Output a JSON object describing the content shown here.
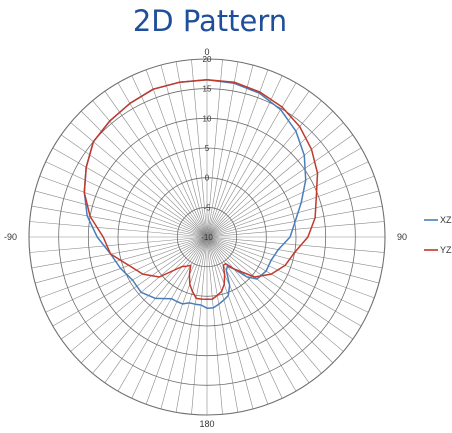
{
  "chart_data": {
    "type": "polar-line",
    "title": "2D Pattern",
    "radial_ticks": [
      -10,
      -5,
      0,
      5,
      10,
      15,
      20
    ],
    "rlim": [
      -10,
      20
    ],
    "angle_labels": [
      "0",
      "90",
      "180",
      "-90"
    ],
    "grid": true,
    "legend": "right",
    "colors": {
      "XZ": "#4a7ebb",
      "YZ": "#c0392b"
    },
    "series": [
      {
        "name": "XZ",
        "angles": [
          0,
          10,
          20,
          30,
          40,
          50,
          60,
          70,
          80,
          90,
          100,
          110,
          120,
          130,
          135,
          140,
          145,
          150,
          155,
          160,
          165,
          170,
          175,
          180,
          185,
          190,
          195,
          200,
          205,
          210,
          220,
          230,
          240,
          250,
          260,
          270,
          280,
          290,
          300,
          310,
          320,
          330,
          340,
          350
        ],
        "values": [
          16.5,
          16.3,
          15.8,
          14.8,
          13.3,
          11.4,
          9.2,
          6.9,
          5.1,
          4.0,
          2.2,
          1.5,
          1.5,
          1.0,
          -0.5,
          -3.0,
          -4.0,
          -3.5,
          -1.0,
          0.5,
          1.0,
          1.5,
          2.0,
          2.0,
          1.5,
          1.5,
          1.5,
          2.0,
          2.0,
          2.0,
          3.5,
          4.5,
          4.5,
          5.5,
          6.5,
          8.5,
          10.5,
          12.0,
          13.5,
          15.0,
          15.5,
          16.0,
          16.5,
          16.5
        ]
      },
      {
        "name": "YZ",
        "angles": [
          0,
          10,
          20,
          30,
          40,
          50,
          60,
          70,
          80,
          90,
          100,
          110,
          120,
          130,
          140,
          145,
          150,
          155,
          160,
          165,
          170,
          175,
          180,
          185,
          190,
          195,
          200,
          205,
          210,
          215,
          220,
          230,
          240,
          250,
          260,
          270,
          280,
          290,
          300,
          310,
          320,
          330,
          340,
          350
        ],
        "values": [
          16.5,
          16.5,
          16.0,
          15.3,
          14.3,
          13.0,
          11.5,
          9.6,
          8.5,
          7.0,
          5.0,
          4.0,
          2.5,
          0.5,
          -3.0,
          -4.5,
          -4.5,
          -3.0,
          -1.5,
          -0.5,
          0.0,
          0.5,
          0.5,
          0.5,
          0.5,
          -0.5,
          -1.5,
          -3.0,
          -4.5,
          -4.0,
          -3.5,
          0.5,
          2.5,
          4.0,
          6.5,
          7.5,
          10.0,
          12.0,
          13.5,
          15.0,
          15.5,
          16.0,
          16.5,
          16.5
        ]
      }
    ]
  }
}
